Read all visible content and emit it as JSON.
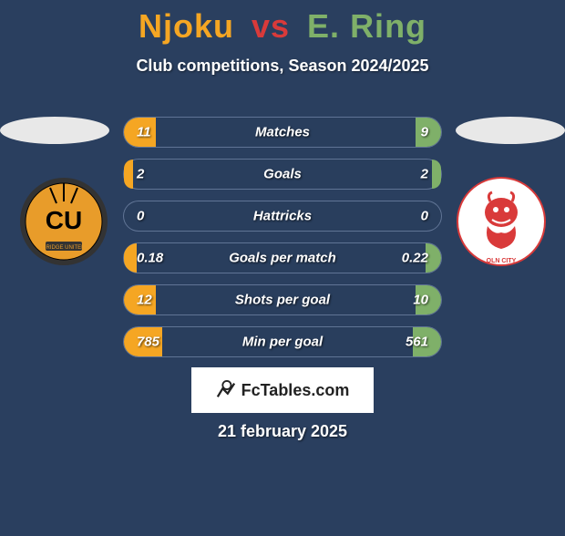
{
  "title": {
    "player1": "Njoku",
    "vs": "vs",
    "player2": "E. Ring"
  },
  "subtitle": "Club competitions, Season 2024/2025",
  "colors": {
    "p1": "#f5a623",
    "p2": "#7fb069",
    "vs": "#d93a3a",
    "bg": "#2a3f5f"
  },
  "badges": {
    "left": {
      "bg": "#e89c2a",
      "text": "CU",
      "ring": "#333"
    },
    "right": {
      "bg": "#ffffff",
      "accent": "#d93a3a"
    }
  },
  "stats": [
    {
      "label": "Matches",
      "left_val": "11",
      "right_val": "9",
      "left_pct": 10,
      "right_pct": 8
    },
    {
      "label": "Goals",
      "left_val": "2",
      "right_val": "2",
      "left_pct": 3,
      "right_pct": 3
    },
    {
      "label": "Hattricks",
      "left_val": "0",
      "right_val": "0",
      "left_pct": 0,
      "right_pct": 0
    },
    {
      "label": "Goals per match",
      "left_val": "0.18",
      "right_val": "0.22",
      "left_pct": 4,
      "right_pct": 5
    },
    {
      "label": "Shots per goal",
      "left_val": "12",
      "right_val": "10",
      "left_pct": 10,
      "right_pct": 8
    },
    {
      "label": "Min per goal",
      "left_val": "785",
      "right_val": "561",
      "left_pct": 12,
      "right_pct": 9
    }
  ],
  "logo_text": "FcTables.com",
  "date": "21 february 2025"
}
